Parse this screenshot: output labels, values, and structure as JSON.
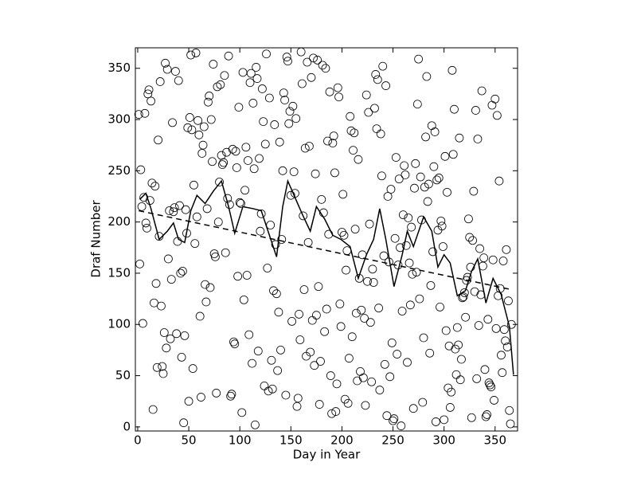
{
  "chart_data": {
    "type": "scatter",
    "xlabel": "Day in Year",
    "ylabel": "Draf Number",
    "xlim": [
      -2.3,
      372
    ],
    "ylim": [
      -4,
      370
    ],
    "xticks": [
      0,
      50,
      100,
      150,
      200,
      250,
      300,
      350
    ],
    "yticks": [
      0,
      50,
      100,
      150,
      200,
      250,
      300,
      350
    ],
    "grid": false,
    "series": [
      {
        "style": "markers",
        "color": "#000000",
        "x": [
          1,
          2,
          3,
          4,
          5,
          6,
          7,
          8,
          9,
          10,
          11,
          12,
          13,
          14,
          15,
          16,
          17,
          18,
          19,
          20,
          21,
          22,
          23,
          24,
          25,
          26,
          27,
          28,
          29,
          30,
          31,
          32,
          33,
          34,
          35,
          36,
          37,
          38,
          39,
          40,
          41,
          42,
          43,
          44,
          45,
          46,
          47,
          48,
          49,
          50,
          51,
          52,
          53,
          54,
          55,
          56,
          57,
          58,
          59,
          60,
          61,
          62,
          63,
          64,
          65,
          66,
          67,
          68,
          69,
          70,
          71,
          72,
          73,
          74,
          75,
          76,
          77,
          78,
          79,
          80,
          81,
          82,
          83,
          84,
          85,
          86,
          87,
          88,
          89,
          90,
          91,
          92,
          93,
          94,
          95,
          96,
          97,
          98,
          99,
          100,
          101,
          102,
          103,
          104,
          105,
          106,
          107,
          108,
          109,
          110,
          111,
          112,
          113,
          114,
          115,
          116,
          117,
          118,
          119,
          120,
          121,
          122,
          123,
          124,
          125,
          126,
          127,
          128,
          129,
          130,
          131,
          132,
          133,
          134,
          135,
          136,
          137,
          138,
          139,
          140,
          141,
          142,
          143,
          144,
          145,
          146,
          147,
          148,
          149,
          150,
          151,
          152,
          153,
          154,
          155,
          156,
          157,
          158,
          159,
          160,
          161,
          162,
          163,
          164,
          165,
          166,
          167,
          168,
          169,
          170,
          171,
          172,
          173,
          174,
          175,
          176,
          177,
          178,
          179,
          180,
          181,
          182,
          183,
          184,
          185,
          186,
          187,
          188,
          189,
          190,
          191,
          192,
          193,
          194,
          195,
          196,
          197,
          198,
          199,
          200,
          201,
          202,
          203,
          204,
          205,
          206,
          207,
          208,
          209,
          210,
          211,
          212,
          213,
          214,
          215,
          216,
          217,
          218,
          219,
          220,
          221,
          222,
          223,
          224,
          225,
          226,
          227,
          228,
          229,
          230,
          231,
          232,
          233,
          234,
          235,
          236,
          237,
          238,
          239,
          240,
          241,
          242,
          243,
          244,
          245,
          246,
          247,
          248,
          249,
          250,
          251,
          252,
          253,
          254,
          255,
          256,
          257,
          258,
          259,
          260,
          261,
          262,
          263,
          264,
          265,
          266,
          267,
          268,
          269,
          270,
          271,
          272,
          273,
          274,
          275,
          276,
          277,
          278,
          279,
          280,
          281,
          282,
          283,
          284,
          285,
          286,
          287,
          288,
          289,
          290,
          291,
          292,
          293,
          294,
          295,
          296,
          297,
          298,
          299,
          300,
          301,
          302,
          303,
          304,
          305,
          306,
          307,
          308,
          309,
          310,
          311,
          312,
          313,
          314,
          315,
          316,
          317,
          318,
          319,
          320,
          321,
          322,
          323,
          324,
          325,
          326,
          327,
          328,
          329,
          330,
          331,
          332,
          333,
          334,
          335,
          336,
          337,
          338,
          339,
          340,
          341,
          342,
          343,
          344,
          345,
          346,
          347,
          348,
          349,
          350,
          351,
          352,
          353,
          354,
          355,
          356,
          357,
          358,
          359,
          360,
          361,
          362,
          363,
          364,
          365,
          366
        ],
        "values": [
          305,
          159,
          251,
          215,
          101,
          224,
          306,
          199,
          194,
          325,
          329,
          221,
          318,
          238,
          17,
          121,
          235,
          140,
          58,
          280,
          186,
          337,
          118,
          59,
          52,
          92,
          355,
          77,
          349,
          164,
          211,
          86,
          144,
          297,
          210,
          214,
          347,
          91,
          181,
          338,
          216,
          150,
          68,
          152,
          4,
          89,
          212,
          189,
          292,
          25,
          302,
          363,
          290,
          57,
          236,
          179,
          365,
          205,
          299,
          285,
          108,
          29,
          267,
          275,
          293,
          139,
          122,
          213,
          317,
          323,
          136,
          300,
          259,
          354,
          169,
          166,
          33,
          332,
          200,
          239,
          334,
          265,
          256,
          258,
          343,
          170,
          268,
          223,
          362,
          217,
          30,
          32,
          271,
          83,
          81,
          269,
          253,
          147,
          312,
          219,
          218,
          14,
          346,
          124,
          231,
          273,
          148,
          260,
          90,
          336,
          345,
          62,
          316,
          252,
          2,
          351,
          340,
          74,
          262,
          191,
          208,
          330,
          298,
          40,
          276,
          364,
          155,
          35,
          321,
          197,
          65,
          37,
          133,
          295,
          178,
          130,
          55,
          112,
          278,
          75,
          183,
          250,
          326,
          319,
          31,
          361,
          357,
          296,
          308,
          226,
          103,
          313,
          249,
          228,
          301,
          20,
          28,
          110,
          85,
          366,
          335,
          206,
          134,
          272,
          69,
          356,
          180,
          274,
          73,
          341,
          104,
          360,
          60,
          247,
          109,
          358,
          137,
          22,
          64,
          222,
          353,
          209,
          93,
          350,
          115,
          279,
          188,
          327,
          50,
          13,
          277,
          284,
          248,
          15,
          42,
          331,
          322,
          120,
          98,
          190,
          227,
          187,
          27,
          153,
          172,
          23,
          67,
          303,
          289,
          88,
          270,
          287,
          193,
          111,
          45,
          261,
          145,
          54,
          114,
          168,
          48,
          106,
          21,
          324,
          142,
          307,
          198,
          102,
          44,
          154,
          141,
          311,
          344,
          291,
          339,
          116,
          36,
          286,
          245,
          352,
          167,
          61,
          333,
          11,
          225,
          161,
          49,
          232,
          82,
          6,
          8,
          184,
          263,
          71,
          158,
          242,
          175,
          1,
          113,
          207,
          255,
          246,
          177,
          63,
          204,
          160,
          119,
          195,
          149,
          18,
          233,
          257,
          151,
          315,
          359,
          125,
          244,
          202,
          24,
          87,
          234,
          283,
          342,
          220,
          237,
          72,
          138,
          294,
          171,
          254,
          288,
          5,
          241,
          192,
          243,
          117,
          201,
          196,
          176,
          7,
          264,
          94,
          229,
          38,
          79,
          19,
          34,
          348,
          266,
          310,
          76,
          51,
          97,
          80,
          282,
          46,
          66,
          126,
          127,
          131,
          107,
          143,
          146,
          203,
          185,
          156,
          9,
          182,
          230,
          132,
          309,
          47,
          281,
          99,
          174,
          129,
          328,
          157,
          165,
          56,
          10,
          12,
          105,
          43,
          41,
          39,
          314,
          163,
          26,
          320,
          96,
          304,
          128,
          240,
          135,
          70,
          53,
          162,
          95,
          84,
          173,
          78,
          123,
          16,
          3,
          100
        ]
      },
      {
        "style": "solid-line",
        "color": "#000000",
        "x": [
          2,
          8,
          13,
          21,
          29,
          35,
          40,
          46,
          52,
          58,
          66,
          74,
          82,
          89,
          95,
          103,
          113,
          121,
          129,
          136,
          142,
          147,
          154,
          161,
          169,
          175,
          183,
          191,
          199,
          208,
          216,
          224,
          231,
          237,
          243,
          251,
          259,
          264,
          270,
          280,
          288,
          294,
          300,
          306,
          313,
          321,
          327,
          333,
          341,
          348,
          356,
          364,
          368
        ],
        "values": [
          222,
          228,
          213,
          183,
          191,
          199,
          183,
          180,
          211,
          226,
          218,
          230,
          240,
          215,
          189,
          215,
          213,
          211,
          187,
          166,
          215,
          240,
          224,
          208,
          191,
          215,
          203,
          187,
          183,
          176,
          145,
          168,
          183,
          213,
          183,
          137,
          168,
          191,
          176,
          205,
          191,
          156,
          168,
          160,
          128,
          133,
          152,
          164,
          121,
          145,
          129,
          98,
          51
        ]
      },
      {
        "style": "dashed-line",
        "color": "#000000",
        "x": [
          1,
          366
        ],
        "values": [
          211,
          134
        ]
      }
    ]
  }
}
